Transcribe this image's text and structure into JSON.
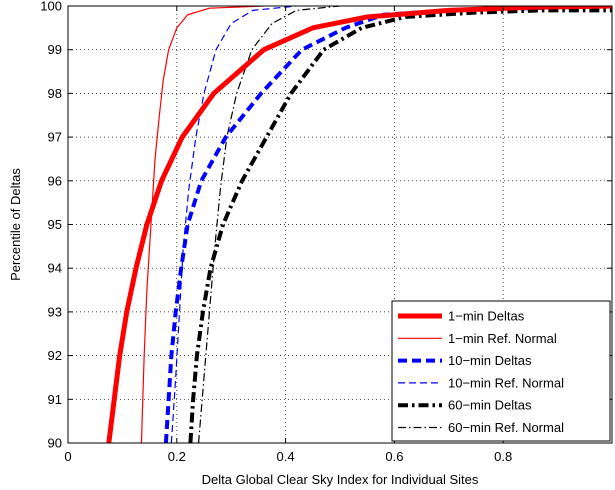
{
  "chart_data": {
    "type": "line",
    "xlabel": "Delta Global Clear Sky Index for Individual Sites",
    "ylabel": "Percentile of Deltas",
    "xlim": [
      0,
      1
    ],
    "ylim": [
      90,
      100
    ],
    "xticks": [
      0,
      0.2,
      0.4,
      0.6,
      0.8
    ],
    "xtick_labels": [
      "0",
      "0.2",
      "0.4",
      "0.6",
      "0.8"
    ],
    "yticks": [
      90,
      91,
      92,
      93,
      94,
      95,
      96,
      97,
      98,
      99,
      100
    ],
    "ytick_labels": [
      "90",
      "91",
      "92",
      "93",
      "94",
      "95",
      "96",
      "97",
      "98",
      "99",
      "100"
    ],
    "grid": true,
    "legend_position": "bottom-right",
    "series": [
      {
        "name": "1−min Deltas",
        "color": "#ff0000",
        "style": "solid-thick",
        "points": [
          [
            0.075,
            90
          ],
          [
            0.085,
            91
          ],
          [
            0.095,
            92
          ],
          [
            0.108,
            93
          ],
          [
            0.125,
            94
          ],
          [
            0.145,
            95
          ],
          [
            0.172,
            96
          ],
          [
            0.21,
            97
          ],
          [
            0.268,
            98
          ],
          [
            0.36,
            99
          ],
          [
            0.45,
            99.5
          ],
          [
            0.55,
            99.75
          ],
          [
            0.7,
            99.9
          ],
          [
            0.85,
            99.97
          ],
          [
            1.0,
            100
          ]
        ]
      },
      {
        "name": "1−min Ref. Normal",
        "color": "#ff0000",
        "style": "solid-thin",
        "points": [
          [
            0.135,
            90
          ],
          [
            0.14,
            92
          ],
          [
            0.145,
            93.5
          ],
          [
            0.15,
            94.5
          ],
          [
            0.155,
            95.5
          ],
          [
            0.16,
            96.5
          ],
          [
            0.168,
            97.5
          ],
          [
            0.175,
            98.3
          ],
          [
            0.185,
            99
          ],
          [
            0.2,
            99.5
          ],
          [
            0.22,
            99.8
          ],
          [
            0.26,
            99.95
          ],
          [
            0.36,
            100
          ]
        ]
      },
      {
        "name": "10−min Deltas",
        "color": "#0000ff",
        "style": "dashed-thick",
        "points": [
          [
            0.18,
            90
          ],
          [
            0.185,
            91
          ],
          [
            0.19,
            92
          ],
          [
            0.198,
            93
          ],
          [
            0.208,
            94
          ],
          [
            0.22,
            95
          ],
          [
            0.245,
            96
          ],
          [
            0.29,
            97
          ],
          [
            0.355,
            98
          ],
          [
            0.43,
            99
          ],
          [
            0.51,
            99.5
          ],
          [
            0.58,
            99.8
          ],
          [
            0.7,
            99.9
          ],
          [
            0.85,
            99.95
          ],
          [
            1.0,
            100
          ]
        ]
      },
      {
        "name": "10−min Ref. Normal",
        "color": "#0000ff",
        "style": "dashed-thin",
        "points": [
          [
            0.19,
            90
          ],
          [
            0.198,
            91.5
          ],
          [
            0.205,
            93
          ],
          [
            0.212,
            94.5
          ],
          [
            0.222,
            95.8
          ],
          [
            0.235,
            97
          ],
          [
            0.25,
            98
          ],
          [
            0.272,
            99
          ],
          [
            0.3,
            99.6
          ],
          [
            0.34,
            99.9
          ],
          [
            0.42,
            100
          ]
        ]
      },
      {
        "name": "60−min Deltas",
        "color": "#000000",
        "style": "dashdot-thick",
        "points": [
          [
            0.225,
            90
          ],
          [
            0.23,
            91
          ],
          [
            0.237,
            92
          ],
          [
            0.248,
            93
          ],
          [
            0.262,
            94
          ],
          [
            0.285,
            95
          ],
          [
            0.32,
            96
          ],
          [
            0.365,
            97
          ],
          [
            0.41,
            98
          ],
          [
            0.47,
            99
          ],
          [
            0.54,
            99.5
          ],
          [
            0.62,
            99.75
          ],
          [
            0.75,
            99.85
          ],
          [
            0.87,
            99.9
          ],
          [
            1.0,
            99.9
          ]
        ]
      },
      {
        "name": "60−min Ref. Normal",
        "color": "#000000",
        "style": "dashdot-thin",
        "points": [
          [
            0.24,
            90
          ],
          [
            0.25,
            91.5
          ],
          [
            0.26,
            93
          ],
          [
            0.27,
            94.5
          ],
          [
            0.28,
            95.8
          ],
          [
            0.292,
            97
          ],
          [
            0.31,
            98
          ],
          [
            0.338,
            99
          ],
          [
            0.375,
            99.6
          ],
          [
            0.42,
            99.9
          ],
          [
            0.5,
            100
          ]
        ]
      }
    ]
  }
}
